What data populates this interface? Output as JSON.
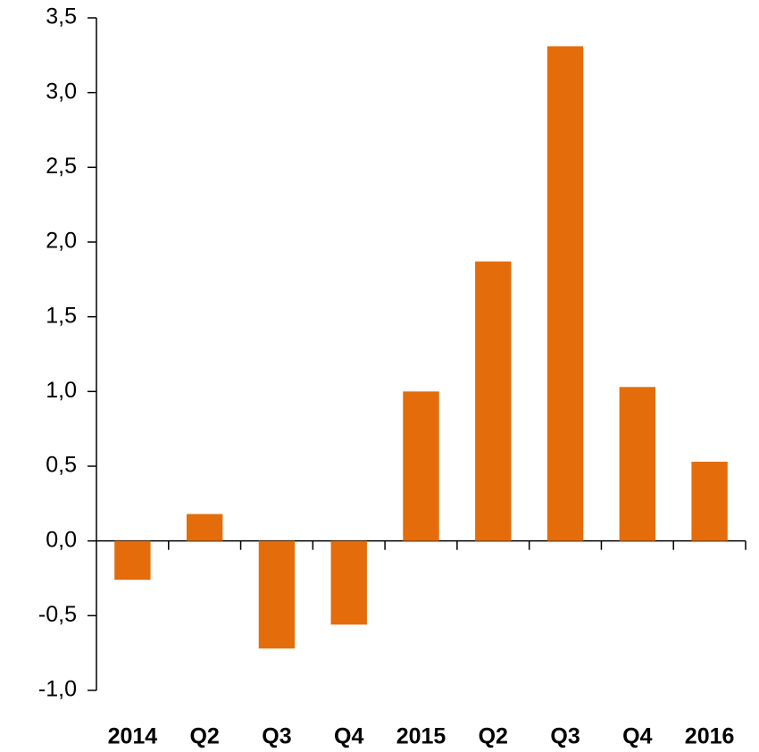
{
  "chart_data": {
    "type": "bar",
    "categories": [
      "2014",
      "Q2",
      "Q3",
      "Q4",
      "2015",
      "Q2",
      "Q3",
      "Q4",
      "2016"
    ],
    "values": [
      -0.26,
      0.18,
      -0.72,
      -0.56,
      1.0,
      1.87,
      3.31,
      1.03,
      0.53
    ],
    "color": "#e46c0a",
    "ylim": [
      -1.0,
      3.5
    ],
    "yticks": [
      {
        "value": -1.0,
        "label": "-1,0"
      },
      {
        "value": -0.5,
        "label": "-0,5"
      },
      {
        "value": 0,
        "label": "0,0"
      },
      {
        "value": 0.5,
        "label": "0,5"
      },
      {
        "value": 1.0,
        "label": "1,0"
      },
      {
        "value": 1.5,
        "label": "1,5"
      },
      {
        "value": 2.0,
        "label": "2,0"
      },
      {
        "value": 2.5,
        "label": "2,5"
      },
      {
        "value": 3.0,
        "label": "3,0"
      },
      {
        "value": 3.5,
        "label": "3,5"
      }
    ],
    "grid": false
  }
}
